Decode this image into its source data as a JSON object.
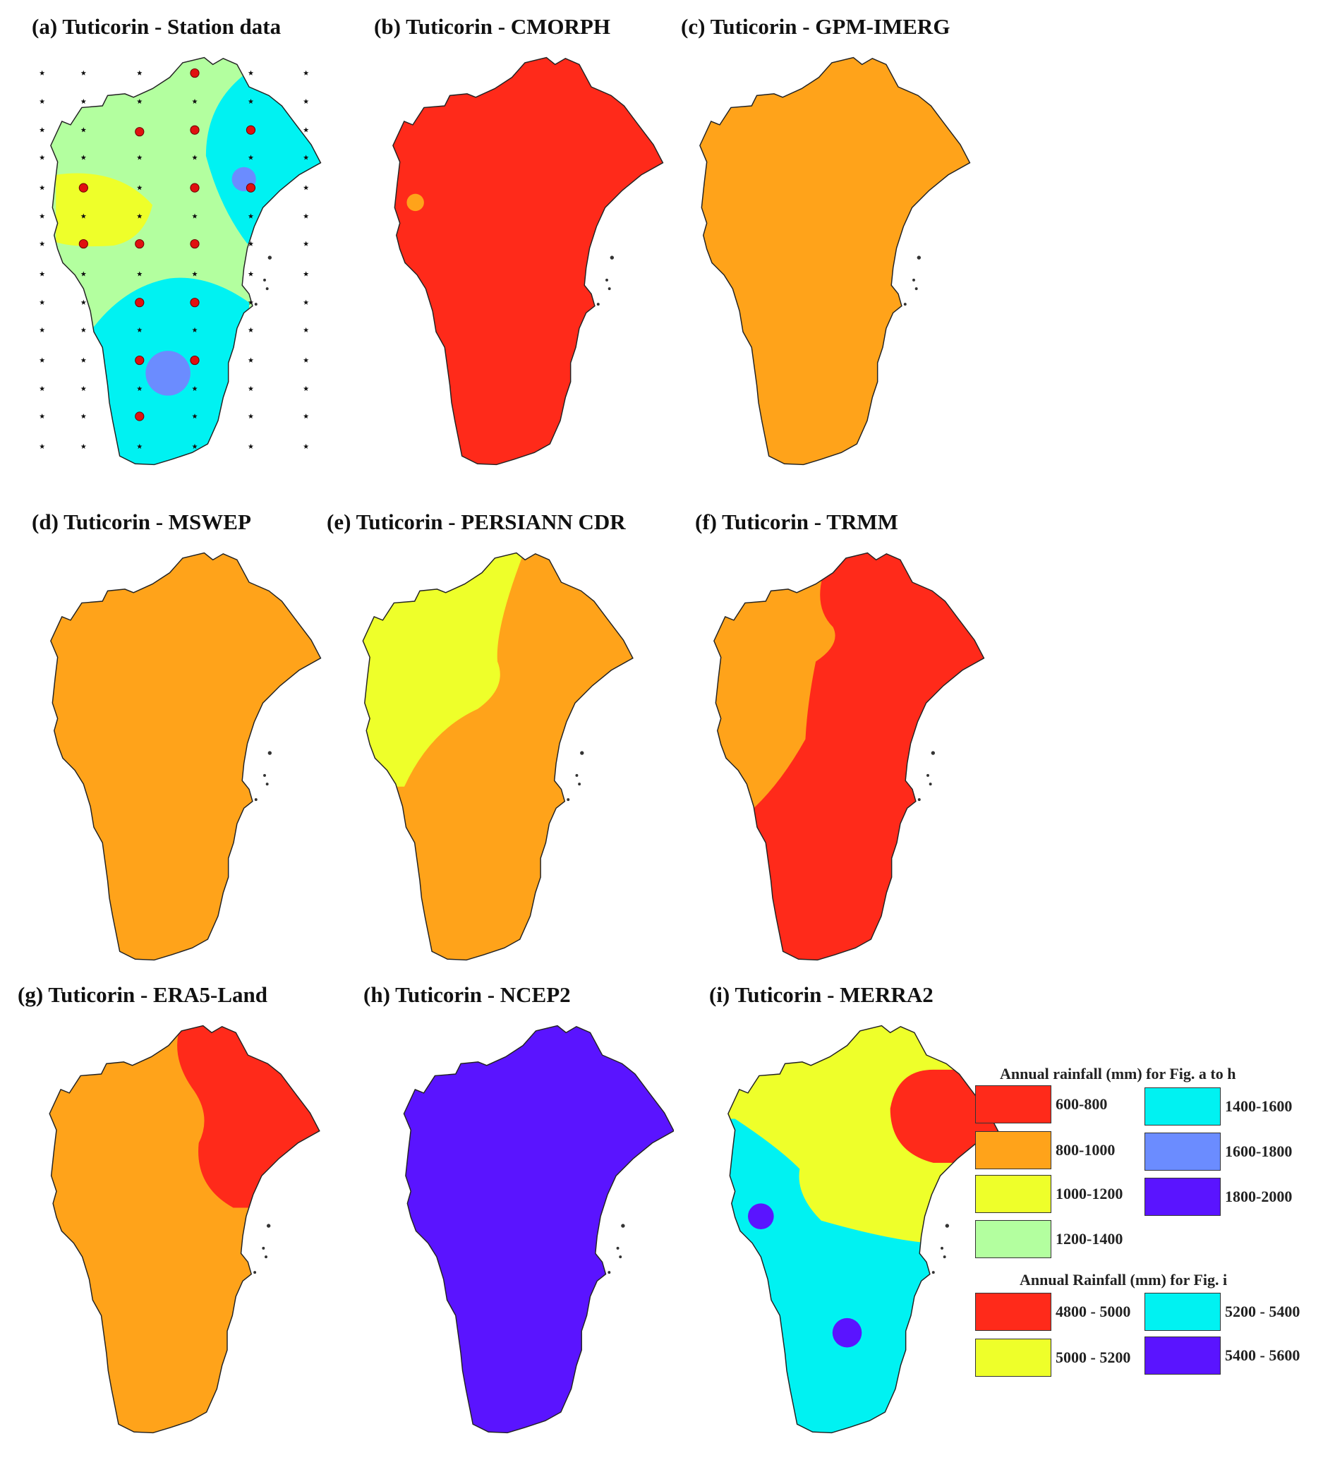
{
  "figure": {
    "panels": [
      {
        "id": "a",
        "title": "(a) Tuticorin - Station data"
      },
      {
        "id": "b",
        "title": "(b) Tuticorin - CMORPH"
      },
      {
        "id": "c",
        "title": "(c) Tuticorin - GPM-IMERG"
      },
      {
        "id": "d",
        "title": "(d) Tuticorin - MSWEP"
      },
      {
        "id": "e",
        "title": "(e) Tuticorin - PERSIANN CDR"
      },
      {
        "id": "f",
        "title": "(f) Tuticorin - TRMM"
      },
      {
        "id": "g",
        "title": "(g) Tuticorin - ERA5-Land"
      },
      {
        "id": "h",
        "title": "(h) Tuticorin - NCEP2"
      },
      {
        "id": "i",
        "title": "(i) Tuticorin - MERRA2"
      }
    ]
  },
  "legend": {
    "title_a_to_h": "Annual rainfall (mm) for Fig. a to h",
    "items_a_to_h": [
      {
        "label": "600-800",
        "color": "#ff2a1a"
      },
      {
        "label": "800-1000",
        "color": "#ffa31a"
      },
      {
        "label": "1000-1200",
        "color": "#eeff2a"
      },
      {
        "label": "1200-1400",
        "color": "#b3ff9f"
      },
      {
        "label": "1400-1600",
        "color": "#00f2f2"
      },
      {
        "label": "1600-1800",
        "color": "#6b8cff"
      },
      {
        "label": "1800-2000",
        "color": "#5a14ff"
      }
    ],
    "title_i": "Annual Rainfall (mm) for Fig. i",
    "items_i": [
      {
        "label": "4800 - 5000",
        "color": "#ff2a1a"
      },
      {
        "label": "5000 - 5200",
        "color": "#eeff2a"
      },
      {
        "label": "5200 - 5400",
        "color": "#00f2f2"
      },
      {
        "label": "5400 - 5600",
        "color": "#5a14ff"
      }
    ]
  },
  "colors": {
    "c600_800": "#ff2a1a",
    "c800_1000": "#ffa31a",
    "c1000_1200": "#eeff2a",
    "c1200_1400": "#b3ff9f",
    "c1400_1600": "#00f2f2",
    "c1600_1800": "#6b8cff",
    "c1800_2000": "#5a14ff",
    "station_marker": "#e01010"
  }
}
